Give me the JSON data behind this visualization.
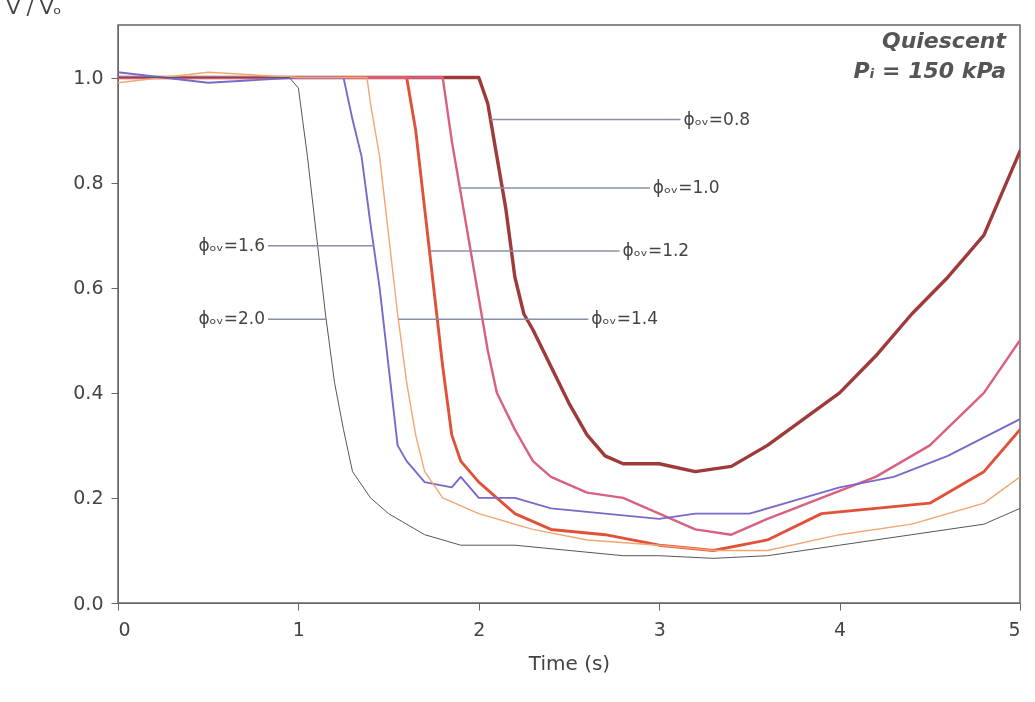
{
  "chart_data": {
    "type": "line",
    "xlabel": "Time (s)",
    "ylabel": "V / Vₒ",
    "xlim": [
      0,
      5
    ],
    "ylim": [
      0,
      1.1
    ],
    "xticks": [
      0,
      1,
      2,
      3,
      4,
      5
    ],
    "yticks": [
      {
        "value": 0,
        "label": "0.0"
      },
      0.2,
      0.4,
      0.6,
      0.8,
      {
        "value": 1,
        "label": "1.0"
      }
    ],
    "grid": false,
    "legend": false,
    "marker": "none",
    "line_style": "solid",
    "series": [
      {
        "color": "#9e3a3a",
        "x": [
          0,
          0.5,
          1.0,
          1.5,
          2.0,
          2.05,
          2.1,
          2.15,
          2.2,
          2.25,
          2.3,
          2.4,
          2.5,
          2.6,
          2.7,
          2.8,
          3.0,
          3.2,
          3.4,
          3.6,
          3.8,
          4.0,
          4.2,
          4.4,
          4.6,
          4.8,
          5.0
        ],
        "values": [
          1.0,
          1.0,
          1.0,
          1.0,
          1.0,
          0.95,
          0.85,
          0.75,
          0.62,
          0.55,
          0.52,
          0.45,
          0.38,
          0.32,
          0.28,
          0.265,
          0.265,
          0.25,
          0.26,
          0.3,
          0.35,
          0.4,
          0.47,
          0.55,
          0.62,
          0.7,
          0.86
        ]
      },
      {
        "color": "#d9607f",
        "x": [
          0,
          0.5,
          1.0,
          1.5,
          1.8,
          1.85,
          1.9,
          1.95,
          2.0,
          2.05,
          2.1,
          2.2,
          2.3,
          2.4,
          2.6,
          2.8,
          3.0,
          3.2,
          3.4,
          3.6,
          3.9,
          4.2,
          4.5,
          4.8,
          5.0
        ],
        "values": [
          1.0,
          1.0,
          1.0,
          1.0,
          1.0,
          0.88,
          0.78,
          0.68,
          0.58,
          0.48,
          0.4,
          0.33,
          0.27,
          0.24,
          0.21,
          0.2,
          0.17,
          0.14,
          0.13,
          0.16,
          0.2,
          0.24,
          0.3,
          0.4,
          0.5
        ]
      },
      {
        "color": "#e0513a",
        "x": [
          0,
          0.5,
          1.0,
          1.5,
          1.6,
          1.65,
          1.7,
          1.75,
          1.8,
          1.85,
          1.9,
          2.0,
          2.2,
          2.4,
          2.7,
          3.0,
          3.3,
          3.6,
          3.9,
          4.2,
          4.5,
          4.8,
          5.0
        ],
        "values": [
          1.0,
          1.0,
          1.0,
          1.0,
          1.0,
          0.9,
          0.75,
          0.6,
          0.45,
          0.32,
          0.27,
          0.23,
          0.17,
          0.14,
          0.13,
          0.11,
          0.1,
          0.12,
          0.17,
          0.18,
          0.19,
          0.25,
          0.33
        ]
      },
      {
        "color": "#f2a672",
        "x": [
          0,
          0.5,
          1.0,
          1.38,
          1.4,
          1.45,
          1.5,
          1.55,
          1.6,
          1.65,
          1.7,
          1.8,
          2.0,
          2.3,
          2.6,
          3.0,
          3.3,
          3.6,
          4.0,
          4.4,
          4.8,
          5.0
        ],
        "values": [
          0.99,
          1.01,
          1.0,
          1.0,
          0.95,
          0.85,
          0.7,
          0.55,
          0.42,
          0.32,
          0.25,
          0.2,
          0.17,
          0.14,
          0.12,
          0.11,
          0.1,
          0.1,
          0.13,
          0.15,
          0.19,
          0.24
        ]
      },
      {
        "color": "#7b68c8",
        "x": [
          0,
          0.5,
          1.0,
          1.25,
          1.3,
          1.35,
          1.4,
          1.45,
          1.5,
          1.55,
          1.6,
          1.7,
          1.85,
          1.9,
          2.0,
          2.2,
          2.4,
          2.7,
          3.0,
          3.2,
          3.5,
          3.8,
          4.0,
          4.3,
          4.6,
          5.0
        ],
        "values": [
          1.01,
          0.99,
          1.0,
          1.0,
          0.92,
          0.85,
          0.72,
          0.6,
          0.45,
          0.3,
          0.27,
          0.23,
          0.22,
          0.24,
          0.2,
          0.2,
          0.18,
          0.17,
          0.16,
          0.17,
          0.17,
          0.2,
          0.22,
          0.24,
          0.28,
          0.35
        ]
      },
      {
        "color": "#555560",
        "x": [
          0,
          0.5,
          0.95,
          1.0,
          1.05,
          1.1,
          1.15,
          1.2,
          1.25,
          1.3,
          1.4,
          1.5,
          1.7,
          1.9,
          2.2,
          2.5,
          2.8,
          3.0,
          3.3,
          3.6,
          4.0,
          4.4,
          4.8,
          5.0
        ],
        "values": [
          1.0,
          1.0,
          1.0,
          0.98,
          0.85,
          0.7,
          0.55,
          0.42,
          0.33,
          0.25,
          0.2,
          0.17,
          0.13,
          0.11,
          0.11,
          0.1,
          0.09,
          0.09,
          0.085,
          0.09,
          0.11,
          0.13,
          0.15,
          0.18
        ]
      }
    ],
    "annotations": [
      "Quiescent",
      "Pᵢ = 150 kPa",
      {
        "text": "ϕₒᵥ=0.8",
        "x": 2.065,
        "y": 0.92
      },
      {
        "text": "ϕₒᵥ=1.0",
        "x": 1.895,
        "y": 0.79
      },
      {
        "text": "ϕₒᵥ=1.2",
        "x": 1.727,
        "y": 0.67
      },
      {
        "text": "ϕₒᵥ=1.4",
        "x": 1.554,
        "y": 0.54
      },
      {
        "text": "ϕₒᵥ=1.6",
        "x": 1.417,
        "y": 0.68
      },
      {
        "text": "ϕₒᵥ=2.0",
        "x": 1.154,
        "y": 0.54
      }
    ]
  }
}
